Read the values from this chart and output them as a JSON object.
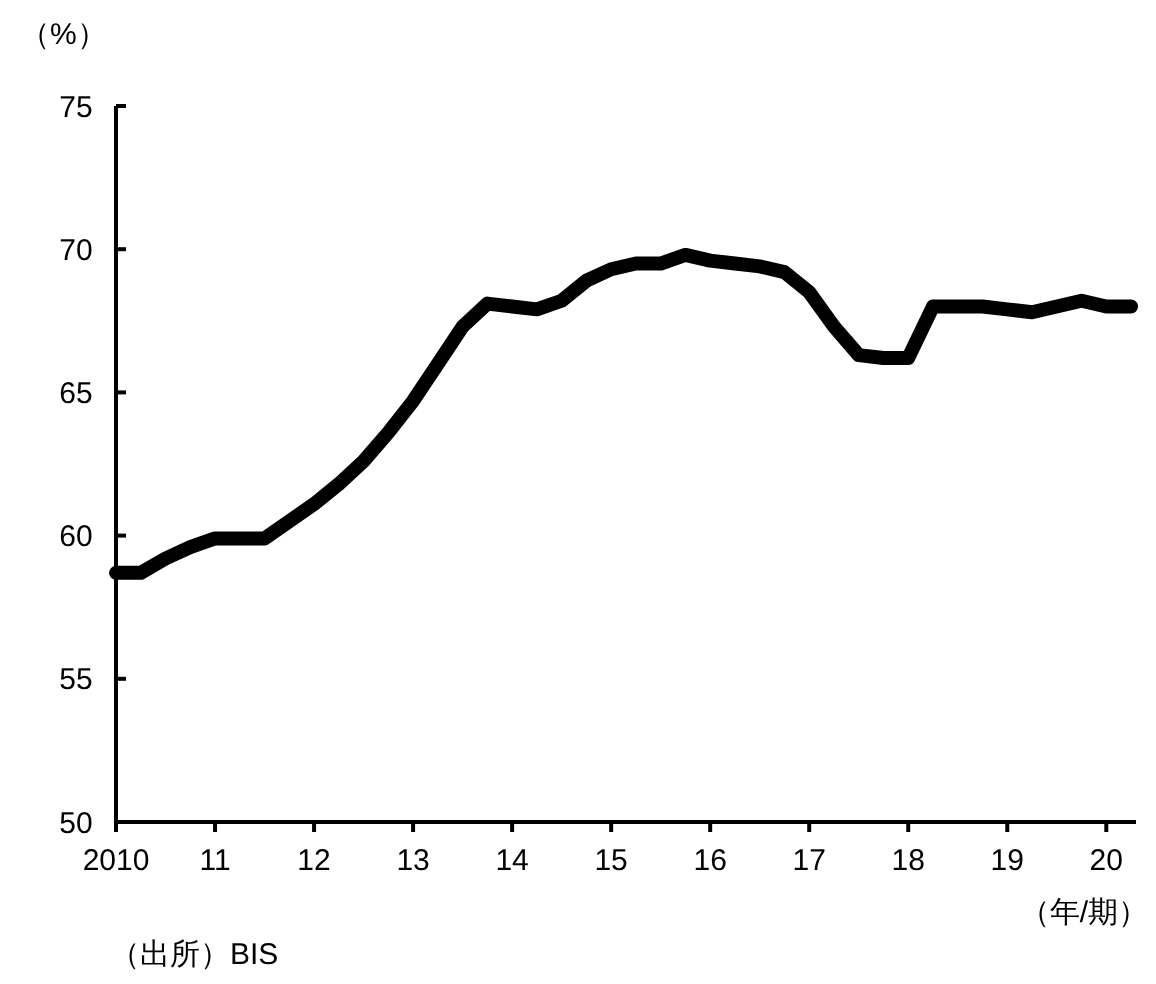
{
  "chart_data": {
    "type": "line",
    "ylabel": "（%）",
    "xlabel": "（年/期）",
    "annotations": [
      "（出所）BIS"
    ],
    "x": [
      2010,
      2010.25,
      2010.5,
      2010.75,
      2011,
      2011.25,
      2011.5,
      2011.75,
      2012,
      2012.25,
      2012.5,
      2012.75,
      2013,
      2013.25,
      2013.5,
      2013.75,
      2014,
      2014.25,
      2014.5,
      2014.75,
      2015,
      2015.25,
      2015.5,
      2015.75,
      2016,
      2016.25,
      2016.5,
      2016.75,
      2017,
      2017.25,
      2017.5,
      2017.75,
      2018,
      2018.25,
      2018.5,
      2018.75,
      2019,
      2019.25,
      2019.5,
      2019.75,
      2020,
      2020.25
    ],
    "series": [
      {
        "color": "#000000",
        "values": [
          58.7,
          58.7,
          59.2,
          59.6,
          59.9,
          59.9,
          59.9,
          60.5,
          61.1,
          61.8,
          62.6,
          63.6,
          64.7,
          66.0,
          67.3,
          68.1,
          68.0,
          67.9,
          68.2,
          68.9,
          69.3,
          69.5,
          69.5,
          69.8,
          69.6,
          69.5,
          69.4,
          69.2,
          68.5,
          67.3,
          66.3,
          66.2,
          66.2,
          68.0,
          68.0,
          68.0,
          67.9,
          67.8,
          68.0,
          68.2,
          68.0,
          68.0
        ]
      }
    ],
    "xlim": [
      2010,
      2020.3
    ],
    "ylim": [
      50,
      75
    ],
    "xticks": [
      2010,
      {
        "value": 2011,
        "label": "11"
      },
      {
        "value": 2012,
        "label": "12"
      },
      {
        "value": 2013,
        "label": "13"
      },
      {
        "value": 2014,
        "label": "14"
      },
      {
        "value": 2015,
        "label": "15"
      },
      {
        "value": 2016,
        "label": "16"
      },
      {
        "value": 2017,
        "label": "17"
      },
      {
        "value": 2018,
        "label": "18"
      },
      {
        "value": 2019,
        "label": "19"
      },
      {
        "value": 2020,
        "label": "20"
      }
    ],
    "yticks": [
      50,
      55,
      60,
      65,
      70,
      75
    ],
    "grid": false,
    "marker": "none",
    "line_style": "solid"
  }
}
